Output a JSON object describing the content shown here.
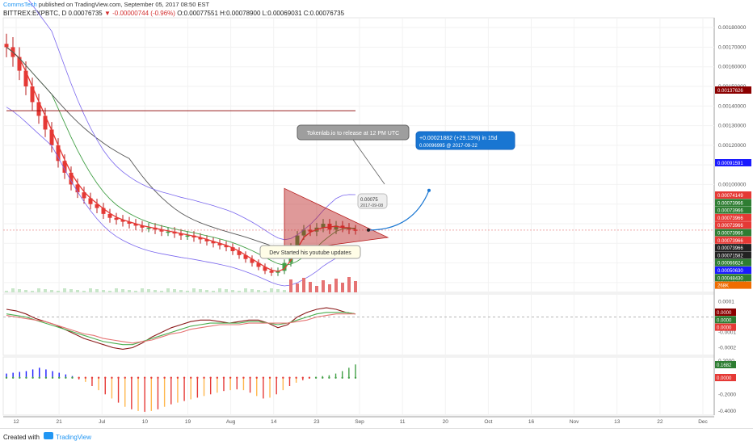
{
  "header": {
    "author": "CommsTech",
    "published": "published on TradingView.com, September 05, 2017 08:50 EST",
    "symbol_line_prefix": "BITTREX:EXPBTC, D",
    "last": "0.00076735",
    "change": "-0.00000744 (-0.96%)",
    "ohlc": "O:0.00077551 H:0.00078900 L:0.00069031 C:0.00076735"
  },
  "footer": {
    "created_with": "Created with",
    "brand": "TradingView"
  },
  "chart_data": [
    {
      "type": "line",
      "panel": "price",
      "title": "BITTREX:EXPBTC, D",
      "x": [
        "12",
        "21",
        "Jul",
        "10",
        "19",
        "Aug",
        "14",
        "23",
        "Sep",
        "11",
        "20",
        "Oct",
        "16",
        "Nov",
        "13",
        "22",
        "Dec"
      ],
      "y_ticks": [
        "0.00180000",
        "0.00170000",
        "0.00160000",
        "0.00150000",
        "0.00140000",
        "0.00130000",
        "0.00120000",
        "0.00110000",
        "0.00100000",
        "0.00090000",
        "0.00080000",
        "0.00070000",
        "0.00060000",
        "0.00050000"
      ],
      "ylim": [
        0.00045,
        0.00185
      ],
      "price_tags": [
        {
          "text": "0.00137626",
          "color": "#8b0000"
        },
        {
          "text": "0.00091591",
          "color": "#1a1aff"
        },
        {
          "text": "0.00074149",
          "color": "#e53935"
        },
        {
          "text": "0.00073966",
          "color": "#2e7d32"
        },
        {
          "text": "0.00073966",
          "color": "#2e7d32"
        },
        {
          "text": "0.00073966",
          "color": "#e53935"
        },
        {
          "text": "0.00073966",
          "color": "#e53935"
        },
        {
          "text": "0.00073966",
          "color": "#2e7d32"
        },
        {
          "text": "0.00073966",
          "color": "#e53935"
        },
        {
          "text": "0.00073966",
          "color": "#222222"
        },
        {
          "text": "0.00071582",
          "color": "#222222"
        },
        {
          "text": "0.00066624",
          "color": "#2e7d32"
        },
        {
          "text": "0.00050630",
          "color": "#1a1aff"
        },
        {
          "text": "0.00048430",
          "color": "#2e7d32"
        },
        {
          "text": "268K",
          "color": "#ef6c00"
        }
      ],
      "close_series": [
        0.0017,
        0.00165,
        0.00158,
        0.0015,
        0.00142,
        0.00135,
        0.00128,
        0.0012,
        0.00112,
        0.00106,
        0.001,
        0.00096,
        0.00093,
        0.0009,
        0.00088,
        0.00085,
        0.00083,
        0.00082,
        0.00081,
        0.0008,
        0.00079,
        0.00078,
        0.00078,
        0.00077,
        0.00076,
        0.00076,
        0.00075,
        0.00074,
        0.00074,
        0.00073,
        0.00072,
        0.00071,
        0.0007,
        0.00069,
        0.00068,
        0.00066,
        0.00064,
        0.00062,
        0.0006,
        0.00058,
        0.00056,
        0.00055,
        0.00056,
        0.0006,
        0.00068,
        0.00074,
        0.00077,
        0.00076,
        0.00078,
        0.0008,
        0.00077,
        0.00079,
        0.00078,
        0.00077,
        0.00076735
      ],
      "annotations": [
        {
          "text": "Tokenlab.io to release at 12 PM UTC"
        },
        {
          "text": "Dev Started his youtube updates"
        },
        {
          "text": "+0.00021882 (+29.13%) in 15d"
        },
        {
          "text": "0.00096995 @ 2017-09-22"
        },
        {
          "text": "0.00075"
        },
        {
          "text": "2017-09-08"
        }
      ]
    },
    {
      "type": "line",
      "panel": "oscillator",
      "y_ticks": [
        "0.0001",
        "0.0000",
        "-0.0001",
        "-0.0002"
      ],
      "ylim": [
        -0.00025,
        0.00015
      ],
      "series": [
        {
          "color": "#8b1a1a",
          "values": [
            5e-05,
            4e-05,
            2e-05,
            -1e-05,
            -3e-05,
            -5e-05,
            -8e-05,
            -0.00011,
            -0.00014,
            -0.00016,
            -0.00018,
            -0.0002,
            -0.00021,
            -0.0002,
            -0.00017,
            -0.00013,
            -0.0001,
            -7e-05,
            -5e-05,
            -3e-05,
            -2e-05,
            -2e-05,
            -3e-05,
            -4e-05,
            -3e-05,
            -2e-05,
            -2e-05,
            -4e-05,
            -7e-05,
            -5e-05,
            0.0,
            3e-05,
            5e-05,
            6e-05,
            5e-05,
            3e-05,
            2e-05
          ]
        },
        {
          "color": "#4caf50",
          "values": [
            2e-05,
            1e-05,
            0.0,
            -2e-05,
            -4e-05,
            -6e-05,
            -8e-05,
            -0.0001,
            -0.00012,
            -0.00014,
            -0.00016,
            -0.00017,
            -0.00018,
            -0.00018,
            -0.00016,
            -0.00014,
            -0.00012,
            -0.0001,
            -8e-05,
            -6e-05,
            -5e-05,
            -4e-05,
            -4e-05,
            -4e-05,
            -4e-05,
            -3e-05,
            -3e-05,
            -4e-05,
            -5e-05,
            -4e-05,
            -2e-05,
            0.0,
            2e-05,
            3e-05,
            3e-05,
            3e-05,
            2e-05
          ]
        },
        {
          "color": "#e57373",
          "values": [
            1e-05,
            0.0,
            -1e-05,
            -2e-05,
            -3e-05,
            -5e-05,
            -7e-05,
            -9e-05,
            -0.00011,
            -0.00012,
            -0.00014,
            -0.00015,
            -0.00016,
            -0.00017,
            -0.00016,
            -0.00015,
            -0.00013,
            -0.00011,
            -0.0001,
            -8e-05,
            -7e-05,
            -6e-05,
            -5e-05,
            -5e-05,
            -5e-05,
            -4e-05,
            -4e-05,
            -4e-05,
            -4e-05,
            -4e-05,
            -3e-05,
            -2e-05,
            0.0,
            1e-05,
            2e-05,
            2e-05,
            2e-05
          ]
        }
      ],
      "price_tags": [
        {
          "text": "0.0000",
          "color": "#8b0000"
        },
        {
          "text": "0.0000",
          "color": "#2e7d32"
        },
        {
          "text": "0.0000",
          "color": "#e53935"
        }
      ]
    },
    {
      "type": "bar",
      "panel": "histogram",
      "y_ticks": [
        "0.2000",
        "0.0000",
        "-0.2000",
        "-0.4000"
      ],
      "ylim": [
        -0.45,
        0.25
      ],
      "values": [
        0.05,
        0.06,
        0.07,
        0.08,
        0.1,
        0.12,
        0.1,
        0.08,
        0.06,
        0.04,
        0.02,
        -0.02,
        -0.05,
        -0.1,
        -0.15,
        -0.2,
        -0.25,
        -0.3,
        -0.35,
        -0.38,
        -0.4,
        -0.41,
        -0.4,
        -0.38,
        -0.35,
        -0.32,
        -0.3,
        -0.28,
        -0.26,
        -0.24,
        -0.22,
        -0.2,
        -0.18,
        -0.16,
        -0.15,
        -0.14,
        -0.15,
        -0.18,
        -0.22,
        -0.25,
        -0.24,
        -0.2,
        -0.15,
        -0.1,
        -0.06,
        -0.03,
        -0.01,
        0.01,
        0.02,
        0.03,
        0.05,
        0.08,
        0.12,
        0.16
      ],
      "price_tags": [
        {
          "text": "0.1682",
          "color": "#2e7d32"
        },
        {
          "text": "0.0000",
          "color": "#e53935"
        }
      ]
    }
  ]
}
